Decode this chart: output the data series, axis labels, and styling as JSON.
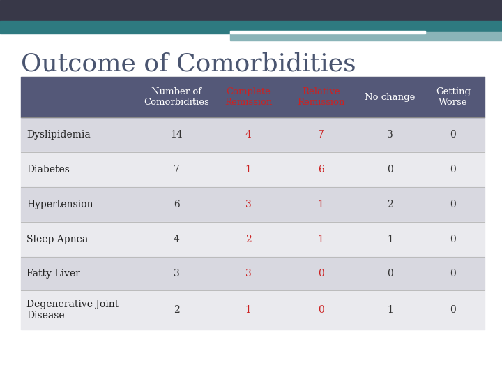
{
  "title": "Outcome of Comorbidities",
  "title_color": "#4a5570",
  "title_fontsize": 26,
  "title_font": "serif",
  "background_color": "#ffffff",
  "header_bar_color": "#383848",
  "header_bar2_color": "#2e7a80",
  "header_bar3_color": "#8ab4b8",
  "header_bg": "#545878",
  "col_headers": [
    "Number of\nComorbidities",
    "Complete\nRemission",
    "Relative\nRemission",
    "No change",
    "Getting\nWorse"
  ],
  "col_header_colors": [
    "#ffffff",
    "#cc2222",
    "#cc2222",
    "#ffffff",
    "#ffffff"
  ],
  "row_labels": [
    "Dyslipidemia",
    "Diabetes",
    "Hypertension",
    "Sleep Apnea",
    "Fatty Liver",
    "Degenerative Joint\nDisease"
  ],
  "row_data": [
    [
      "14",
      "4",
      "7",
      "3",
      "0"
    ],
    [
      "7",
      "1",
      "6",
      "0",
      "0"
    ],
    [
      "6",
      "3",
      "1",
      "2",
      "0"
    ],
    [
      "4",
      "2",
      "1",
      "1",
      "0"
    ],
    [
      "3",
      "3",
      "0",
      "0",
      "0"
    ],
    [
      "2",
      "1",
      "0",
      "1",
      "0"
    ]
  ],
  "data_colors": [
    [
      "#333333",
      "#cc2222",
      "#cc2222",
      "#333333",
      "#333333"
    ],
    [
      "#333333",
      "#cc2222",
      "#cc2222",
      "#333333",
      "#333333"
    ],
    [
      "#333333",
      "#cc2222",
      "#cc2222",
      "#333333",
      "#333333"
    ],
    [
      "#333333",
      "#cc2222",
      "#cc2222",
      "#333333",
      "#333333"
    ],
    [
      "#333333",
      "#cc2222",
      "#cc2222",
      "#333333",
      "#333333"
    ],
    [
      "#333333",
      "#cc2222",
      "#cc2222",
      "#333333",
      "#333333"
    ]
  ],
  "row_odd_bg": "#d8d8e0",
  "row_even_bg": "#eaeaee",
  "row_label_font": "serif",
  "row_label_fontsize": 10,
  "data_fontsize": 10,
  "header_fontsize": 9.5
}
